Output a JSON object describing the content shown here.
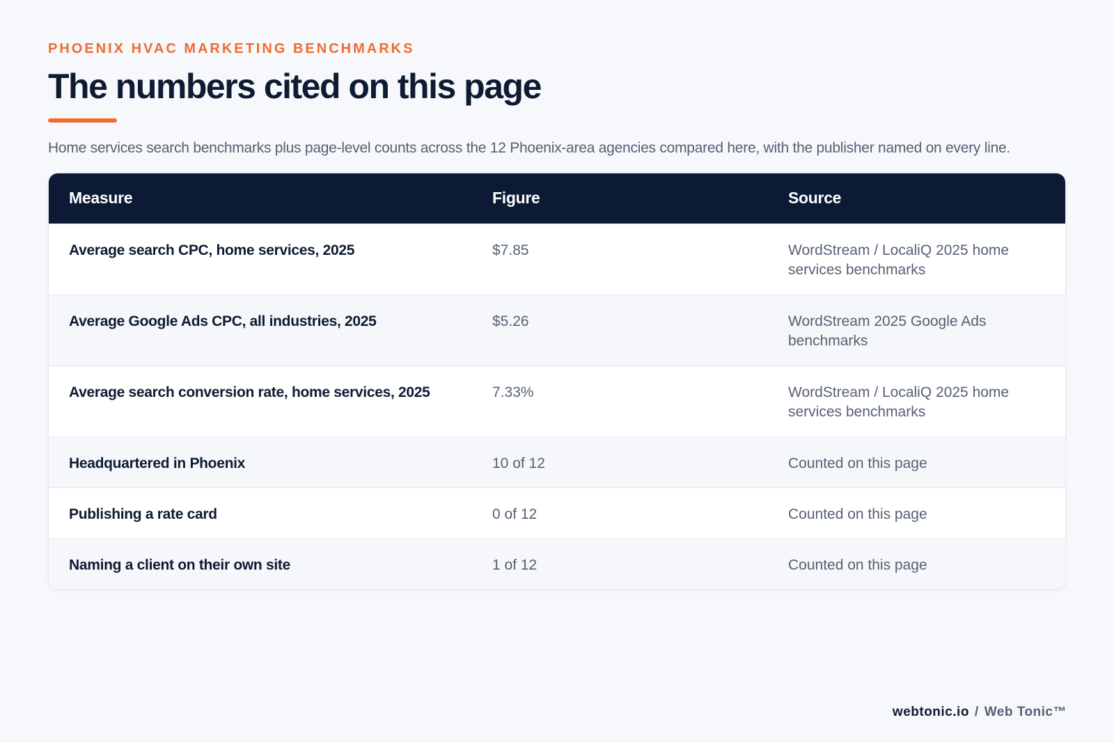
{
  "header": {
    "eyebrow": "PHOENIX HVAC MARKETING BENCHMARKS",
    "title": "The numbers cited on this page",
    "subtitle": "Home services search benchmarks plus page-level counts across the 12 Phoenix-area agencies compared here, with the publisher named on every line."
  },
  "table": {
    "columns": [
      "Measure",
      "Figure",
      "Source"
    ],
    "rows": [
      {
        "measure": "Average search CPC, home services, 2025",
        "figure": "$7.85",
        "source": "WordStream / LocaliQ 2025 home services benchmarks"
      },
      {
        "measure": "Average Google Ads CPC, all industries, 2025",
        "figure": "$5.26",
        "source": "WordStream 2025 Google Ads benchmarks"
      },
      {
        "measure": "Average search conversion rate, home services, 2025",
        "figure": "7.33%",
        "source": "WordStream / LocaliQ 2025 home services benchmarks"
      },
      {
        "measure": "Headquartered in Phoenix",
        "figure": "10 of 12",
        "source": "Counted on this page"
      },
      {
        "measure": "Publishing a rate card",
        "figure": "0 of 12",
        "source": "Counted on this page"
      },
      {
        "measure": "Naming a client on their own site",
        "figure": "1 of 12",
        "source": "Counted on this page"
      }
    ]
  },
  "footer": {
    "site": "webtonic.io",
    "separator": "/",
    "brand": "Web Tonic™"
  },
  "colors": {
    "accent": "#ef6c2f",
    "header_bg": "#0c1a35",
    "text_dark": "#0f1b33",
    "text_muted": "#566173",
    "page_bg": "#f6f8fb"
  }
}
